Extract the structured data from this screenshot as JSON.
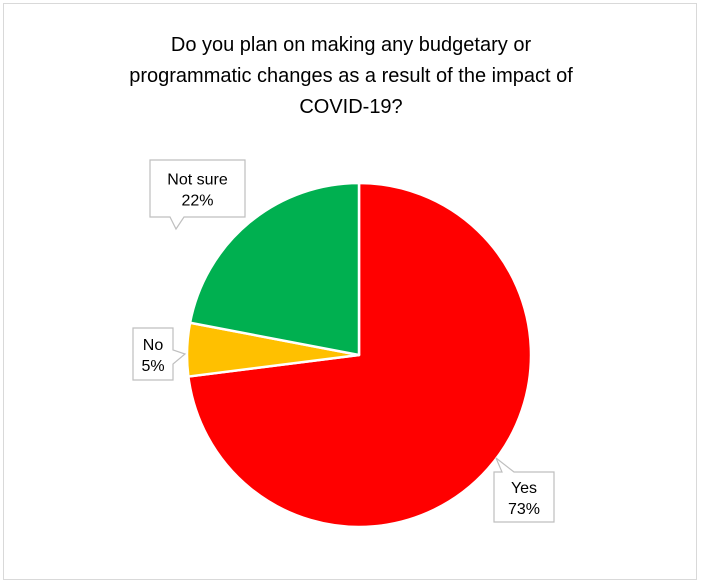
{
  "chart_data": {
    "type": "pie",
    "title_lines": [
      "Do you plan on making any budgetary or",
      "programmatic changes as a result of the impact of",
      "COVID-19?"
    ],
    "slices": [
      {
        "label": "Yes",
        "value": 73,
        "value_label": "73%",
        "color": "#ff0000"
      },
      {
        "label": "No",
        "value": 5,
        "value_label": "5%",
        "color": "#ffc000"
      },
      {
        "label": "Not sure",
        "value": 22,
        "value_label": "22%",
        "color": "#00b050"
      }
    ],
    "start_angle_deg": 0,
    "direction": "clockwise",
    "legend": "none",
    "data_labels": "callouts"
  }
}
